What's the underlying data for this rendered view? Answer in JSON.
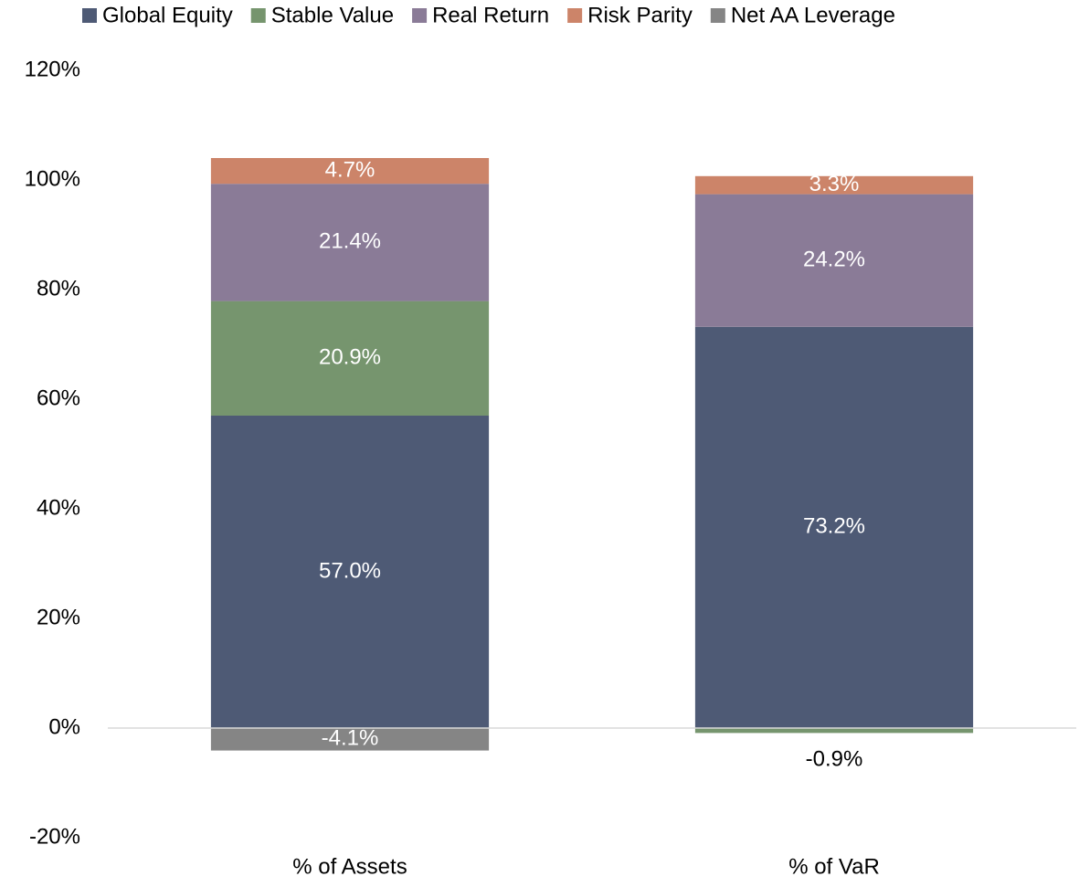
{
  "chart_data": {
    "type": "stacked_bar",
    "categories": [
      "% of Assets",
      "% of VaR"
    ],
    "series": [
      {
        "name": "Global Equity",
        "color": "#4e5a75",
        "values": [
          57.0,
          73.2
        ],
        "value_labels": [
          "57.0%",
          "73.2%"
        ]
      },
      {
        "name": "Stable Value",
        "color": "#76956e",
        "values": [
          20.9,
          -0.9
        ],
        "value_labels": [
          "20.9%",
          "-0.9%"
        ]
      },
      {
        "name": "Real Return",
        "color": "#8a7b97",
        "values": [
          21.4,
          24.2
        ],
        "value_labels": [
          "21.4%",
          "24.2%"
        ]
      },
      {
        "name": "Risk Parity",
        "color": "#cc8469",
        "values": [
          4.7,
          3.3
        ],
        "value_labels": [
          "4.7%",
          "3.3%"
        ]
      },
      {
        "name": "Net AA Leverage",
        "color": "#858585",
        "values": [
          -4.1,
          null
        ],
        "value_labels": [
          "-4.1%",
          null
        ]
      }
    ],
    "ylim": [
      -20,
      120
    ],
    "yticks": [
      {
        "value": -20,
        "label": "-20%"
      },
      {
        "value": 0,
        "label": "0%"
      },
      {
        "value": 20,
        "label": "20%"
      },
      {
        "value": 40,
        "label": "40%"
      },
      {
        "value": 60,
        "label": "60%"
      },
      {
        "value": 80,
        "label": "80%"
      },
      {
        "value": 100,
        "label": "100%"
      },
      {
        "value": 120,
        "label": "120%"
      }
    ],
    "grid": false,
    "legend": "top"
  }
}
